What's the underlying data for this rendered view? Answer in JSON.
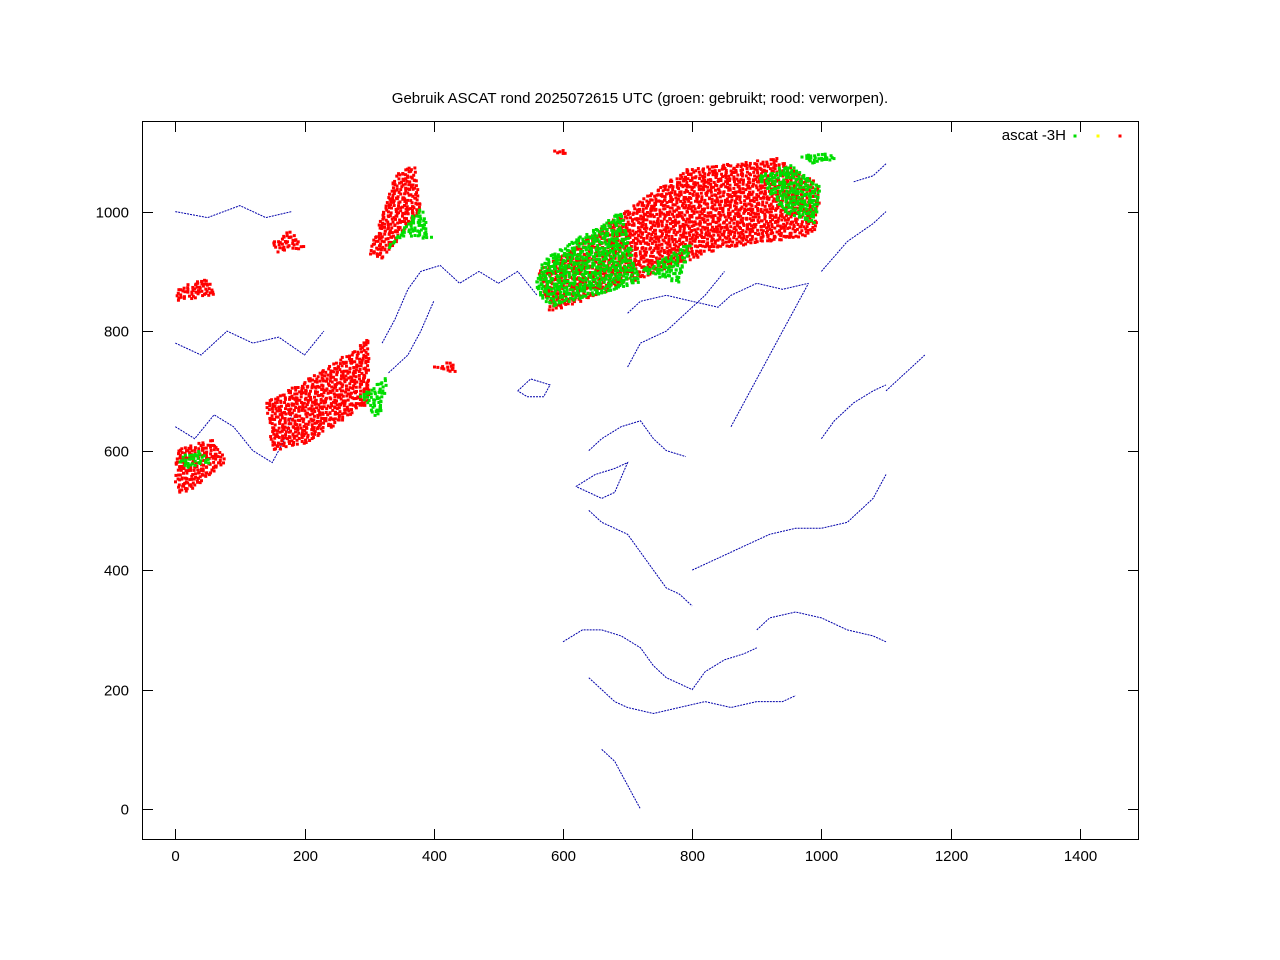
{
  "chart_data": {
    "type": "scatter",
    "title": "Gebruik ASCAT rond 2025072615 UTC (groen: gebruikt; rood: verworpen).",
    "xlabel": "",
    "ylabel": "",
    "xlim": [
      -50,
      1490
    ],
    "ylim": [
      -50,
      1150
    ],
    "xticks": [
      0,
      200,
      400,
      600,
      800,
      1000,
      1200,
      1400
    ],
    "yticks": [
      0,
      200,
      400,
      600,
      800,
      1000
    ],
    "grid": false,
    "legend_placement": "top-right",
    "legend_title": "ascat -3H",
    "colors": {
      "used": "#00dd00",
      "flagged": "#ffff00",
      "rejected": "#ff0000",
      "coastline": "#0000aa"
    },
    "series": [
      {
        "color": "#00dd00",
        "regions": [
          {
            "polygon": [
              [
                285,
                690
              ],
              [
                330,
                725
              ],
              [
                315,
                650
              ],
              [
                300,
                670
              ]
            ]
          },
          {
            "polygon": [
              [
                320,
                930
              ],
              [
                380,
                1010
              ],
              [
                400,
                950
              ],
              [
                360,
                960
              ]
            ]
          },
          {
            "polygon": [
              [
                570,
                920
              ],
              [
                690,
                1000
              ],
              [
                720,
                880
              ],
              [
                580,
                840
              ],
              [
                555,
                870
              ]
            ]
          },
          {
            "polygon": [
              [
                720,
                900
              ],
              [
                800,
                950
              ],
              [
                780,
                880
              ]
            ]
          },
          {
            "polygon": [
              [
                900,
                1060
              ],
              [
                940,
                1000
              ],
              [
                990,
                980
              ],
              [
                1000,
                1040
              ],
              [
                950,
                1080
              ]
            ]
          },
          {
            "polygon": [
              [
                960,
                1090
              ],
              [
                1000,
                1100
              ],
              [
                1030,
                1090
              ],
              [
                990,
                1080
              ]
            ]
          },
          {
            "polygon": [
              [
                5,
                590
              ],
              [
                40,
                600
              ],
              [
                55,
                580
              ],
              [
                10,
                570
              ]
            ]
          }
        ]
      },
      {
        "color": "#ff0000",
        "regions": [
          {
            "polygon": [
              [
                140,
                680
              ],
              [
                280,
                770
              ],
              [
                300,
                790
              ],
              [
                300,
                680
              ],
              [
                200,
                610
              ],
              [
                150,
                600
              ]
            ]
          },
          {
            "polygon": [
              [
                300,
                930
              ],
              [
                340,
                1060
              ],
              [
                370,
                1080
              ],
              [
                380,
                1000
              ],
              [
                320,
                920
              ]
            ]
          },
          {
            "polygon": [
              [
                560,
                900
              ],
              [
                790,
                1070
              ],
              [
                930,
                1090
              ],
              [
                990,
                1050
              ],
              [
                1000,
                1030
              ],
              [
                990,
                960
              ],
              [
                850,
                940
              ],
              [
                700,
                880
              ],
              [
                580,
                830
              ]
            ]
          },
          {
            "polygon": [
              [
                0,
                870
              ],
              [
                50,
                890
              ],
              [
                60,
                860
              ],
              [
                0,
                850
              ]
            ]
          },
          {
            "polygon": [
              [
                0,
                600
              ],
              [
                60,
                620
              ],
              [
                80,
                580
              ],
              [
                20,
                530
              ],
              [
                0,
                530
              ]
            ]
          },
          {
            "polygon": [
              [
                150,
                950
              ],
              [
                180,
                970
              ],
              [
                200,
                940
              ],
              [
                160,
                930
              ]
            ]
          },
          {
            "polygon": [
              [
                580,
                1100
              ],
              [
                600,
                1105
              ],
              [
                605,
                1095
              ]
            ]
          },
          {
            "polygon": [
              [
                400,
                740
              ],
              [
                430,
                750
              ],
              [
                435,
                730
              ]
            ]
          }
        ]
      }
    ],
    "coastlines": [
      [
        [
          0,
          1000
        ],
        [
          50,
          990
        ],
        [
          100,
          1010
        ],
        [
          140,
          990
        ],
        [
          180,
          1000
        ]
      ],
      [
        [
          0,
          780
        ],
        [
          40,
          760
        ],
        [
          80,
          800
        ],
        [
          120,
          780
        ],
        [
          160,
          790
        ],
        [
          200,
          760
        ],
        [
          230,
          800
        ]
      ],
      [
        [
          0,
          640
        ],
        [
          30,
          620
        ],
        [
          60,
          660
        ],
        [
          90,
          640
        ],
        [
          120,
          600
        ],
        [
          150,
          580
        ],
        [
          170,
          620
        ],
        [
          180,
          660
        ]
      ],
      [
        [
          320,
          780
        ],
        [
          340,
          820
        ],
        [
          360,
          870
        ],
        [
          380,
          900
        ],
        [
          410,
          910
        ],
        [
          440,
          880
        ],
        [
          470,
          900
        ],
        [
          500,
          880
        ],
        [
          530,
          900
        ],
        [
          560,
          860
        ]
      ],
      [
        [
          330,
          730
        ],
        [
          360,
          760
        ],
        [
          380,
          800
        ],
        [
          400,
          850
        ]
      ],
      [
        [
          530,
          700
        ],
        [
          550,
          720
        ],
        [
          580,
          710
        ],
        [
          570,
          690
        ],
        [
          545,
          690
        ],
        [
          530,
          700
        ]
      ],
      [
        [
          700,
          830
        ],
        [
          720,
          850
        ],
        [
          760,
          860
        ],
        [
          800,
          850
        ],
        [
          840,
          840
        ],
        [
          860,
          860
        ],
        [
          900,
          880
        ],
        [
          940,
          870
        ],
        [
          980,
          880
        ]
      ],
      [
        [
          700,
          740
        ],
        [
          720,
          780
        ],
        [
          760,
          800
        ],
        [
          790,
          830
        ],
        [
          820,
          860
        ],
        [
          850,
          900
        ]
      ],
      [
        [
          640,
          600
        ],
        [
          660,
          620
        ],
        [
          690,
          640
        ],
        [
          720,
          650
        ],
        [
          740,
          620
        ],
        [
          760,
          600
        ],
        [
          790,
          590
        ]
      ],
      [
        [
          620,
          540
        ],
        [
          650,
          560
        ],
        [
          680,
          570
        ],
        [
          700,
          580
        ],
        [
          680,
          530
        ],
        [
          660,
          520
        ],
        [
          640,
          530
        ],
        [
          620,
          540
        ]
      ],
      [
        [
          640,
          500
        ],
        [
          660,
          480
        ],
        [
          680,
          470
        ],
        [
          700,
          460
        ],
        [
          720,
          430
        ],
        [
          740,
          400
        ],
        [
          760,
          370
        ],
        [
          780,
          360
        ],
        [
          800,
          340
        ]
      ],
      [
        [
          600,
          280
        ],
        [
          630,
          300
        ],
        [
          660,
          300
        ],
        [
          690,
          290
        ],
        [
          720,
          270
        ],
        [
          740,
          240
        ],
        [
          760,
          220
        ],
        [
          780,
          210
        ],
        [
          800,
          200
        ],
        [
          820,
          230
        ],
        [
          850,
          250
        ],
        [
          880,
          260
        ],
        [
          900,
          270
        ]
      ],
      [
        [
          640,
          220
        ],
        [
          660,
          200
        ],
        [
          680,
          180
        ],
        [
          700,
          170
        ],
        [
          740,
          160
        ],
        [
          780,
          170
        ],
        [
          820,
          180
        ],
        [
          860,
          170
        ],
        [
          900,
          180
        ],
        [
          940,
          180
        ],
        [
          960,
          190
        ]
      ],
      [
        [
          660,
          100
        ],
        [
          680,
          80
        ],
        [
          690,
          60
        ],
        [
          700,
          40
        ],
        [
          710,
          20
        ],
        [
          720,
          0
        ]
      ],
      [
        [
          800,
          400
        ],
        [
          840,
          420
        ],
        [
          880,
          440
        ],
        [
          920,
          460
        ],
        [
          960,
          470
        ],
        [
          1000,
          470
        ],
        [
          1040,
          480
        ],
        [
          1080,
          520
        ],
        [
          1100,
          560
        ]
      ],
      [
        [
          900,
          300
        ],
        [
          920,
          320
        ],
        [
          960,
          330
        ],
        [
          1000,
          320
        ],
        [
          1040,
          300
        ],
        [
          1080,
          290
        ],
        [
          1100,
          280
        ]
      ],
      [
        [
          1000,
          620
        ],
        [
          1020,
          650
        ],
        [
          1050,
          680
        ],
        [
          1080,
          700
        ],
        [
          1100,
          710
        ]
      ],
      [
        [
          860,
          640
        ],
        [
          880,
          680
        ],
        [
          900,
          720
        ],
        [
          920,
          760
        ],
        [
          940,
          800
        ],
        [
          960,
          840
        ],
        [
          980,
          880
        ]
      ],
      [
        [
          1000,
          900
        ],
        [
          1040,
          950
        ],
        [
          1080,
          980
        ],
        [
          1100,
          1000
        ]
      ],
      [
        [
          1050,
          1050
        ],
        [
          1080,
          1060
        ],
        [
          1100,
          1080
        ]
      ],
      [
        [
          1100,
          700
        ],
        [
          1120,
          720
        ],
        [
          1140,
          740
        ],
        [
          1160,
          760
        ]
      ]
    ]
  }
}
